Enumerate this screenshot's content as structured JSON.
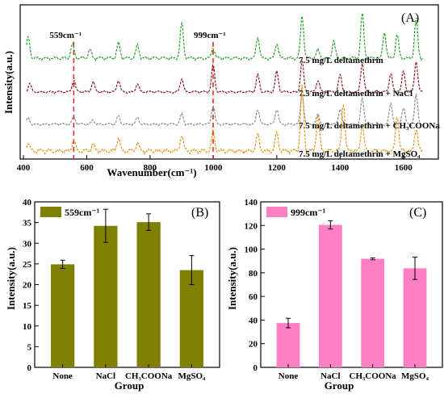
{
  "chart_data": [
    {
      "panel": "(A)",
      "type": "line",
      "xlabel": "Wavenumber(cm⁻¹)",
      "ylabel": "Intensity(a.u.)",
      "xlim": [
        400,
        1700
      ],
      "xticks": [
        400,
        600,
        800,
        1000,
        1200,
        1400,
        1600
      ],
      "grid": false,
      "markers": [
        {
          "label": "559cm⁻¹",
          "x": 559
        },
        {
          "label": "999cm⁻¹",
          "x": 999
        }
      ],
      "series": [
        {
          "name": "7.5 mg/L deltamethrin",
          "color": "#2ca02c",
          "peaks": [
            [
              415,
              0.45
            ],
            [
              555,
              0.3
            ],
            [
              610,
              0.18
            ],
            [
              700,
              0.32
            ],
            [
              760,
              0.28
            ],
            [
              900,
              0.75
            ],
            [
              999,
              0.22
            ],
            [
              1140,
              0.45
            ],
            [
              1200,
              0.32
            ],
            [
              1280,
              0.9
            ],
            [
              1330,
              0.18
            ],
            [
              1380,
              0.35
            ],
            [
              1470,
              0.95
            ],
            [
              1540,
              0.55
            ],
            [
              1580,
              0.5
            ],
            [
              1640,
              0.85
            ]
          ]
        },
        {
          "name": "7.5 mg/L deltamethrin + NaCl",
          "color": "#8b1a1a",
          "peaks": [
            [
              420,
              0.25
            ],
            [
              559,
              0.35
            ],
            [
              620,
              0.3
            ],
            [
              700,
              0.35
            ],
            [
              760,
              0.25
            ],
            [
              900,
              0.4
            ],
            [
              999,
              0.8
            ],
            [
              1140,
              0.5
            ],
            [
              1200,
              0.6
            ],
            [
              1280,
              0.9
            ],
            [
              1330,
              0.35
            ],
            [
              1400,
              0.5
            ],
            [
              1470,
              0.85
            ],
            [
              1560,
              0.55
            ],
            [
              1600,
              0.6
            ],
            [
              1640,
              0.9
            ]
          ]
        },
        {
          "name": "7.5 mg/L deltamethrin + CH₃COONa",
          "color": "#8c8c8c",
          "peaks": [
            [
              415,
              0.18
            ],
            [
              559,
              0.22
            ],
            [
              620,
              0.12
            ],
            [
              700,
              0.25
            ],
            [
              760,
              0.2
            ],
            [
              900,
              0.3
            ],
            [
              999,
              0.55
            ],
            [
              1140,
              0.45
            ],
            [
              1200,
              0.45
            ],
            [
              1280,
              0.9
            ],
            [
              1330,
              0.3
            ],
            [
              1400,
              0.45
            ],
            [
              1470,
              0.75
            ],
            [
              1560,
              0.6
            ],
            [
              1600,
              0.5
            ],
            [
              1640,
              0.85
            ]
          ]
        },
        {
          "name": "7.5 mg/L deltamethrin + MgSO₄",
          "color": "#e8941a",
          "peaks": [
            [
              415,
              0.12
            ],
            [
              559,
              0.18
            ],
            [
              620,
              0.1
            ],
            [
              700,
              0.2
            ],
            [
              760,
              0.12
            ],
            [
              900,
              0.25
            ],
            [
              999,
              0.3
            ],
            [
              1140,
              0.25
            ],
            [
              1200,
              0.28
            ],
            [
              1280,
              1.0
            ],
            [
              1330,
              0.55
            ],
            [
              1410,
              0.75
            ],
            [
              1470,
              0.4
            ],
            [
              1580,
              0.55
            ],
            [
              1640,
              0.35
            ]
          ]
        }
      ]
    },
    {
      "panel": "(B)",
      "type": "bar",
      "xlabel": "Group",
      "ylabel": "Intensity(a.u.)",
      "ylim": [
        0,
        40
      ],
      "yticks": [
        0,
        5,
        10,
        15,
        20,
        25,
        30,
        35,
        40
      ],
      "categories": [
        "None",
        "NaCl",
        "CH₃COONa",
        "MgSO₄"
      ],
      "legend": "top-left",
      "series": [
        {
          "name": "559cm⁻¹",
          "color": "#808000",
          "values": [
            24.9,
            34.2,
            35.1,
            23.5
          ],
          "errors": [
            1.0,
            4.0,
            2.0,
            3.5
          ]
        }
      ]
    },
    {
      "panel": "(C)",
      "type": "bar",
      "xlabel": "Group",
      "ylabel": "Intensity(a.u.)",
      "ylim": [
        0,
        140
      ],
      "yticks": [
        0,
        20,
        40,
        60,
        80,
        100,
        120,
        140
      ],
      "categories": [
        "None",
        "NaCl",
        "CH₃COONa",
        "MgSO₄"
      ],
      "legend": "top-left",
      "series": [
        {
          "name": "999cm⁻¹",
          "color": "#ff7fc4",
          "values": [
            37.5,
            120.5,
            91.8,
            83.8
          ],
          "errors": [
            4.0,
            3.5,
            0.8,
            9.5
          ]
        }
      ]
    }
  ]
}
